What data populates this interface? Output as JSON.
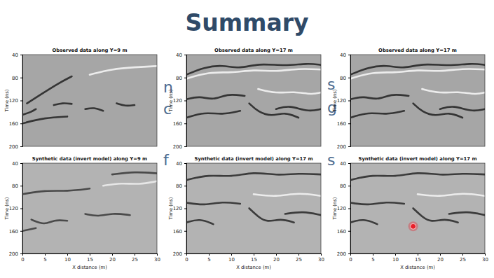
{
  "title": "Summary",
  "fragments": [
    "n",
    "c",
    "f",
    "s",
    "g",
    "s"
  ],
  "chart_data": [
    {
      "type": "line",
      "title": "Observed data along Y=9 m",
      "ylabel": "Time (ns)",
      "xlim": [
        0,
        30
      ],
      "ylim": [
        40,
        200
      ],
      "yticks": [
        40,
        80,
        120,
        160,
        200
      ],
      "tick_labels": "y",
      "series": [
        {
          "color": "#353535",
          "x": [
            0,
            2,
            3
          ],
          "values": [
            145,
            140,
            135
          ]
        },
        {
          "color": "#353535",
          "x": [
            1,
            4,
            8,
            11
          ],
          "values": [
            125,
            110,
            90,
            78
          ]
        },
        {
          "color": "#ececec",
          "x": [
            15,
            20,
            25,
            30
          ],
          "values": [
            75,
            65,
            62,
            60
          ]
        },
        {
          "color": "#353535",
          "x": [
            7,
            9,
            11
          ],
          "values": [
            128,
            124,
            126
          ]
        },
        {
          "color": "#353535",
          "x": [
            14,
            16,
            18
          ],
          "values": [
            135,
            132,
            138
          ]
        },
        {
          "color": "#353535",
          "x": [
            21,
            23,
            25
          ],
          "values": [
            125,
            130,
            128
          ]
        },
        {
          "color": "#353535",
          "x": [
            0,
            5,
            10
          ],
          "values": [
            160,
            150,
            148
          ]
        }
      ]
    },
    {
      "type": "line",
      "title": "Observed data along Y=17 m",
      "ylabel": "Time (ns)",
      "xlim": [
        0,
        30
      ],
      "ylim": [
        40,
        200
      ],
      "yticks": [
        40,
        80,
        120,
        160,
        200
      ],
      "tick_labels": "y",
      "series": [
        {
          "color": "#353535",
          "x": [
            0,
            4,
            8,
            12,
            16,
            22,
            27,
            30
          ],
          "values": [
            75,
            62,
            58,
            65,
            55,
            60,
            55,
            58
          ]
        },
        {
          "color": "#ececec",
          "x": [
            0,
            5,
            10,
            15,
            20,
            25,
            30
          ],
          "values": [
            82,
            70,
            72,
            66,
            70,
            64,
            66
          ]
        },
        {
          "color": "#353535",
          "x": [
            0,
            3,
            6,
            9,
            13
          ],
          "values": [
            118,
            112,
            120,
            108,
            112
          ]
        },
        {
          "color": "#353535",
          "x": [
            14,
            16,
            19,
            22,
            25
          ],
          "values": [
            125,
            140,
            148,
            140,
            150
          ]
        },
        {
          "color": "#353535",
          "x": [
            0,
            4,
            8,
            12
          ],
          "values": [
            150,
            140,
            145,
            138
          ]
        },
        {
          "color": "#ececec",
          "x": [
            16,
            20,
            24,
            28,
            30
          ],
          "values": [
            100,
            108,
            104,
            110,
            106
          ]
        },
        {
          "color": "#353535",
          "x": [
            20,
            23,
            27,
            30
          ],
          "values": [
            135,
            128,
            140,
            135
          ]
        }
      ]
    },
    {
      "type": "line",
      "title": "Observed data along Y=17 m",
      "ylabel": "Time (ns)",
      "xlim": [
        0,
        30
      ],
      "ylim": [
        40,
        200
      ],
      "yticks": [
        40,
        80,
        120,
        160,
        200
      ],
      "tick_labels": "y",
      "series": [
        {
          "color": "#353535",
          "x": [
            0,
            4,
            8,
            12,
            16,
            22,
            27,
            30
          ],
          "values": [
            75,
            62,
            58,
            65,
            55,
            60,
            55,
            58
          ]
        },
        {
          "color": "#ececec",
          "x": [
            0,
            5,
            10,
            15,
            20,
            25,
            30
          ],
          "values": [
            82,
            70,
            72,
            66,
            70,
            64,
            66
          ]
        },
        {
          "color": "#353535",
          "x": [
            0,
            3,
            6,
            9,
            13
          ],
          "values": [
            118,
            112,
            120,
            108,
            112
          ]
        },
        {
          "color": "#353535",
          "x": [
            14,
            16,
            19,
            22,
            25
          ],
          "values": [
            125,
            140,
            148,
            140,
            150
          ]
        },
        {
          "color": "#353535",
          "x": [
            0,
            4,
            8,
            12
          ],
          "values": [
            150,
            140,
            145,
            138
          ]
        },
        {
          "color": "#ececec",
          "x": [
            16,
            20,
            24,
            28,
            30
          ],
          "values": [
            100,
            108,
            104,
            110,
            106
          ]
        },
        {
          "color": "#353535",
          "x": [
            20,
            23,
            27,
            30
          ],
          "values": [
            135,
            128,
            140,
            135
          ]
        }
      ]
    },
    {
      "type": "line",
      "title": "Synthetic data (invert model) along Y=9 m",
      "xlabel": "X distance (m)",
      "ylabel": "Time (ns)",
      "xlim": [
        0,
        30
      ],
      "ylim": [
        40,
        200
      ],
      "xticks": [
        0,
        5,
        10,
        15,
        20,
        25,
        30
      ],
      "yticks": [
        40,
        80,
        120,
        160,
        200
      ],
      "series": [
        {
          "color": "#4a4a4a",
          "x": [
            0,
            5,
            10,
            15
          ],
          "values": [
            95,
            88,
            90,
            85
          ]
        },
        {
          "color": "#e6e6e6",
          "x": [
            18,
            22,
            26,
            30
          ],
          "values": [
            80,
            75,
            78,
            72
          ]
        },
        {
          "color": "#4a4a4a",
          "x": [
            2,
            5,
            7,
            10
          ],
          "values": [
            140,
            150,
            140,
            142
          ]
        },
        {
          "color": "#4a4a4a",
          "x": [
            0,
            3
          ],
          "values": [
            160,
            155
          ]
        },
        {
          "color": "#4a4a4a",
          "x": [
            14,
            17,
            20,
            24
          ],
          "values": [
            130,
            135,
            128,
            132
          ]
        },
        {
          "color": "#4a4a4a",
          "x": [
            20,
            25,
            30
          ],
          "values": [
            60,
            55,
            58
          ]
        }
      ]
    },
    {
      "type": "line",
      "title": "Synthetic data (invert model) along Y=17 m",
      "xlabel": "X distance (m)",
      "ylabel": "Time (ns)",
      "xlim": [
        0,
        30
      ],
      "ylim": [
        40,
        200
      ],
      "xticks": [
        0,
        5,
        10,
        15,
        20,
        25,
        30
      ],
      "yticks": [
        40,
        80,
        120,
        160,
        200
      ],
      "series": [
        {
          "color": "#3c3c3c",
          "x": [
            0,
            5,
            10,
            15,
            20,
            25,
            30
          ],
          "values": [
            70,
            60,
            65,
            55,
            62,
            58,
            60
          ]
        },
        {
          "color": "#3c3c3c",
          "x": [
            0,
            4,
            8,
            12
          ],
          "values": [
            110,
            115,
            108,
            112
          ]
        },
        {
          "color": "#3c3c3c",
          "x": [
            14,
            16,
            18,
            21,
            24
          ],
          "values": [
            120,
            135,
            145,
            138,
            145
          ]
        },
        {
          "color": "#3c3c3c",
          "x": [
            0,
            3,
            6
          ],
          "values": [
            145,
            138,
            148
          ]
        },
        {
          "color": "#ececec",
          "x": [
            15,
            20,
            25,
            30
          ],
          "values": [
            95,
            100,
            92,
            98
          ]
        },
        {
          "color": "#3c3c3c",
          "x": [
            22,
            26,
            30
          ],
          "values": [
            130,
            125,
            132
          ]
        }
      ]
    },
    {
      "type": "line",
      "title": "Synthetic data (invert model) along Y=17 m",
      "xlabel": "X distance (m)",
      "ylabel": "Time (ns)",
      "xlim": [
        0,
        30
      ],
      "ylim": [
        40,
        200
      ],
      "xticks": [
        0,
        5,
        10,
        15,
        20,
        25,
        30
      ],
      "yticks": [
        40,
        80,
        120,
        160,
        200
      ],
      "series": [
        {
          "color": "#3c3c3c",
          "x": [
            0,
            5,
            10,
            15,
            20,
            25,
            30
          ],
          "values": [
            70,
            60,
            65,
            55,
            62,
            58,
            60
          ]
        },
        {
          "color": "#3c3c3c",
          "x": [
            0,
            4,
            8,
            12
          ],
          "values": [
            110,
            115,
            108,
            112
          ]
        },
        {
          "color": "#3c3c3c",
          "x": [
            14,
            16,
            18,
            21,
            24
          ],
          "values": [
            120,
            135,
            145,
            138,
            145
          ]
        },
        {
          "color": "#3c3c3c",
          "x": [
            0,
            3,
            6
          ],
          "values": [
            145,
            138,
            148
          ]
        },
        {
          "color": "#ececec",
          "x": [
            15,
            20,
            25,
            30
          ],
          "values": [
            95,
            100,
            92,
            98
          ]
        },
        {
          "color": "#3c3c3c",
          "x": [
            22,
            26,
            30
          ],
          "values": [
            130,
            125,
            132
          ]
        },
        {
          "type": "scatter",
          "marker": "circle",
          "color": "#e8202a",
          "x": [
            14
          ],
          "values": [
            152
          ]
        }
      ]
    }
  ]
}
